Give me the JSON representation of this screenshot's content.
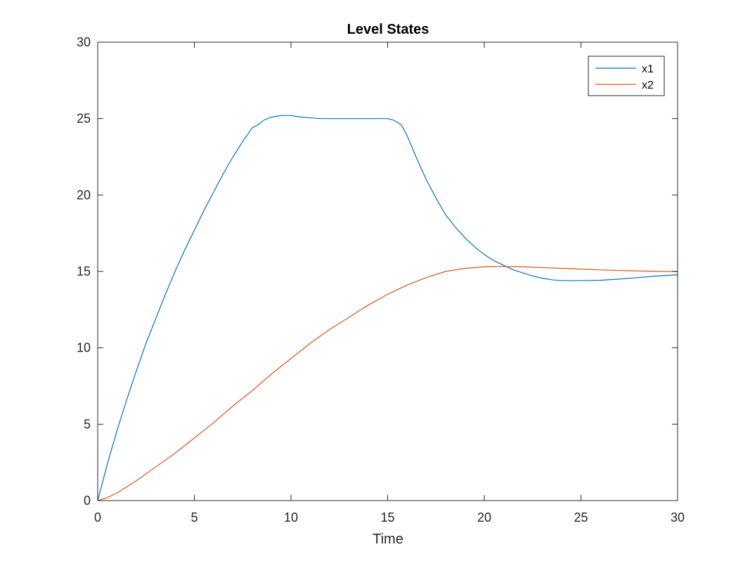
{
  "chart_data": {
    "type": "line",
    "title": "Level States",
    "xlabel": "Time",
    "ylabel": "",
    "xlim": [
      0,
      30
    ],
    "ylim": [
      0,
      30
    ],
    "xticks": [
      0,
      5,
      10,
      15,
      20,
      25,
      30
    ],
    "yticks": [
      0,
      5,
      10,
      15,
      20,
      25,
      30
    ],
    "grid": false,
    "legend_position": "top-right",
    "series": [
      {
        "name": "x1",
        "color": "#0072BD",
        "x": [
          0,
          0.5,
          1,
          1.5,
          2,
          2.5,
          3,
          3.5,
          4,
          4.5,
          5,
          5.5,
          6,
          6.5,
          7,
          7.5,
          8,
          8.3,
          8.6,
          9,
          9.5,
          10,
          10.5,
          11,
          11.5,
          12,
          12.5,
          13,
          13.5,
          14,
          14.5,
          15,
          15.3,
          15.7,
          16,
          16.5,
          17,
          17.5,
          18,
          18.5,
          19,
          19.5,
          20,
          20.5,
          21,
          21.5,
          22,
          22.5,
          23,
          23.5,
          24,
          25,
          26,
          27,
          28,
          29,
          30
        ],
        "y": [
          0,
          2.4,
          4.6,
          6.6,
          8.5,
          10.3,
          11.9,
          13.5,
          15.0,
          16.4,
          17.7,
          19.0,
          20.2,
          21.4,
          22.5,
          23.5,
          24.4,
          24.6,
          24.9,
          25.1,
          25.2,
          25.2,
          25.1,
          25.05,
          25.0,
          25.0,
          25.0,
          25.0,
          25.0,
          25.0,
          25.0,
          25.0,
          24.9,
          24.6,
          23.9,
          22.4,
          21.0,
          19.8,
          18.7,
          17.9,
          17.2,
          16.6,
          16.1,
          15.7,
          15.4,
          15.1,
          14.9,
          14.7,
          14.55,
          14.45,
          14.4,
          14.4,
          14.42,
          14.5,
          14.6,
          14.7,
          14.78
        ]
      },
      {
        "name": "x2",
        "color": "#D95319",
        "x": [
          0,
          0.5,
          1,
          2,
          3,
          4,
          5,
          6,
          7,
          8,
          9,
          10,
          11,
          12,
          13,
          14,
          15,
          16,
          17,
          18,
          19,
          20,
          21,
          22,
          23,
          24,
          25,
          26,
          27,
          28,
          29,
          30
        ],
        "y": [
          0,
          0.2,
          0.5,
          1.3,
          2.2,
          3.1,
          4.1,
          5.1,
          6.2,
          7.2,
          8.3,
          9.3,
          10.3,
          11.2,
          12.0,
          12.8,
          13.5,
          14.1,
          14.6,
          15.0,
          15.2,
          15.3,
          15.32,
          15.3,
          15.25,
          15.2,
          15.15,
          15.1,
          15.06,
          15.03,
          15.0,
          14.98
        ]
      }
    ]
  }
}
